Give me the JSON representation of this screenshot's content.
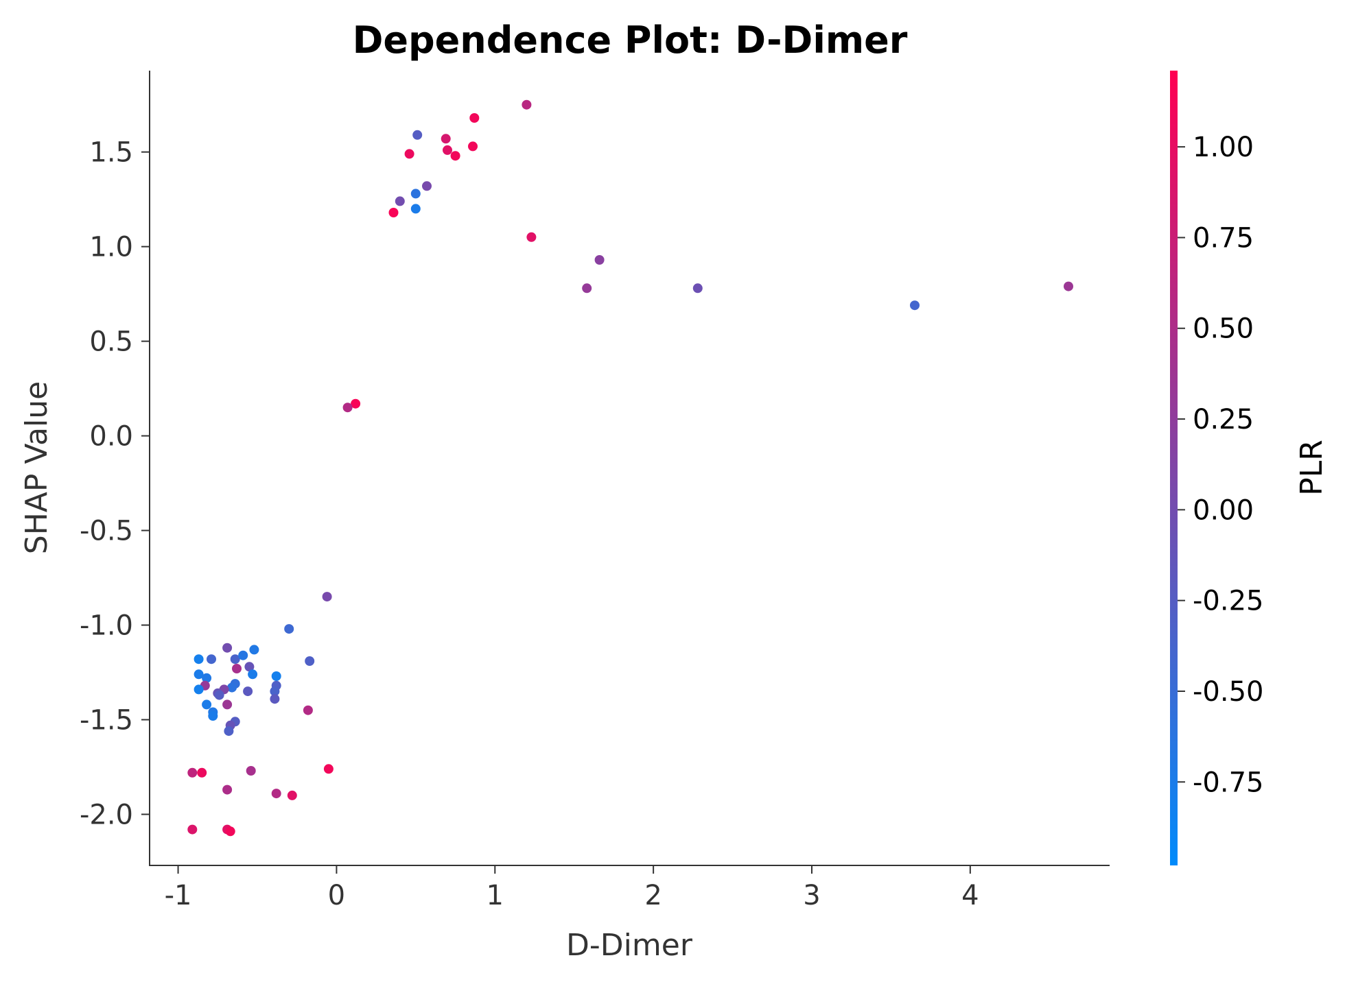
{
  "chart_data": {
    "type": "scatter",
    "title": "Dependence Plot: D-Dimer",
    "xlabel": "D-Dimer",
    "ylabel": "SHAP Value",
    "xlim": [
      -1.18,
      4.88
    ],
    "ylim": [
      -2.27,
      1.93
    ],
    "x_ticks": [
      -1,
      0,
      1,
      2,
      3,
      4
    ],
    "x_tick_labels": [
      "-1",
      "0",
      "1",
      "2",
      "3",
      "4"
    ],
    "y_ticks": [
      -2.0,
      -1.5,
      -1.0,
      -0.5,
      0.0,
      0.5,
      1.0,
      1.5
    ],
    "y_tick_labels": [
      "-2.0",
      "-1.5",
      "-1.0",
      "-0.5",
      "0.0",
      "0.5",
      "1.0",
      "1.5"
    ],
    "grid": false,
    "colorbar": {
      "label": "PLR",
      "range": [
        -0.98,
        1.21
      ],
      "ticks": [
        -0.75,
        -0.5,
        -0.25,
        0.0,
        0.25,
        0.5,
        0.75,
        1.0
      ],
      "tick_labels": [
        "-0.75",
        "-0.50",
        "-0.25",
        "0.00",
        "0.25",
        "0.50",
        "0.75",
        "1.00"
      ],
      "colormap": [
        "#008bfb",
        "#ff0052"
      ]
    },
    "points": [
      {
        "x": 1.2,
        "y": 1.75,
        "c": 0.6
      },
      {
        "x": 0.87,
        "y": 1.68,
        "c": 1.1
      },
      {
        "x": 0.51,
        "y": 1.59,
        "c": -0.25
      },
      {
        "x": 0.69,
        "y": 1.57,
        "c": 0.85
      },
      {
        "x": 0.86,
        "y": 1.53,
        "c": 1.1
      },
      {
        "x": 0.7,
        "y": 1.51,
        "c": 0.95
      },
      {
        "x": 0.46,
        "y": 1.49,
        "c": 1.05
      },
      {
        "x": 0.75,
        "y": 1.48,
        "c": 1.1
      },
      {
        "x": 0.57,
        "y": 1.32,
        "c": 0.05
      },
      {
        "x": 0.5,
        "y": 1.28,
        "c": -0.6
      },
      {
        "x": 0.4,
        "y": 1.24,
        "c": 0.0
      },
      {
        "x": 0.5,
        "y": 1.2,
        "c": -0.75
      },
      {
        "x": 0.36,
        "y": 1.18,
        "c": 1.15
      },
      {
        "x": 1.23,
        "y": 1.05,
        "c": 0.95
      },
      {
        "x": 1.66,
        "y": 0.93,
        "c": 0.2
      },
      {
        "x": 1.58,
        "y": 0.78,
        "c": 0.3
      },
      {
        "x": 2.28,
        "y": 0.78,
        "c": -0.05
      },
      {
        "x": 4.62,
        "y": 0.79,
        "c": 0.35
      },
      {
        "x": 3.65,
        "y": 0.69,
        "c": -0.4
      },
      {
        "x": 0.12,
        "y": 0.17,
        "c": 1.15
      },
      {
        "x": 0.07,
        "y": 0.15,
        "c": 0.55
      },
      {
        "x": -0.06,
        "y": -0.85,
        "c": 0.05
      },
      {
        "x": -0.3,
        "y": -1.02,
        "c": -0.45
      },
      {
        "x": -0.52,
        "y": -1.13,
        "c": -0.7
      },
      {
        "x": -0.69,
        "y": -1.12,
        "c": 0.0
      },
      {
        "x": -0.17,
        "y": -1.19,
        "c": -0.3
      },
      {
        "x": -0.87,
        "y": -1.18,
        "c": -0.8
      },
      {
        "x": -0.79,
        "y": -1.18,
        "c": -0.4
      },
      {
        "x": -0.64,
        "y": -1.18,
        "c": -0.35
      },
      {
        "x": -0.59,
        "y": -1.16,
        "c": -0.65
      },
      {
        "x": -0.55,
        "y": -1.22,
        "c": -0.1
      },
      {
        "x": -0.63,
        "y": -1.23,
        "c": 0.45
      },
      {
        "x": -0.38,
        "y": -1.27,
        "c": -0.8
      },
      {
        "x": -0.53,
        "y": -1.26,
        "c": -0.75
      },
      {
        "x": -0.87,
        "y": -1.26,
        "c": -0.75
      },
      {
        "x": -0.82,
        "y": -1.28,
        "c": -0.7
      },
      {
        "x": -0.64,
        "y": -1.31,
        "c": -0.55
      },
      {
        "x": -0.66,
        "y": -1.33,
        "c": -0.6
      },
      {
        "x": -0.38,
        "y": -1.32,
        "c": -0.3
      },
      {
        "x": -0.83,
        "y": -1.32,
        "c": 0.3
      },
      {
        "x": -0.87,
        "y": -1.34,
        "c": -0.8
      },
      {
        "x": -0.71,
        "y": -1.34,
        "c": 0.1
      },
      {
        "x": -0.56,
        "y": -1.35,
        "c": -0.2
      },
      {
        "x": -0.39,
        "y": -1.35,
        "c": -0.35
      },
      {
        "x": -0.75,
        "y": -1.36,
        "c": -0.1
      },
      {
        "x": -0.74,
        "y": -1.37,
        "c": -0.25
      },
      {
        "x": -0.39,
        "y": -1.39,
        "c": -0.2
      },
      {
        "x": -0.82,
        "y": -1.42,
        "c": -0.75
      },
      {
        "x": -0.69,
        "y": -1.42,
        "c": 0.35
      },
      {
        "x": -0.78,
        "y": -1.46,
        "c": -0.7
      },
      {
        "x": -0.78,
        "y": -1.48,
        "c": -0.75
      },
      {
        "x": -0.18,
        "y": -1.45,
        "c": 0.55
      },
      {
        "x": -0.64,
        "y": -1.51,
        "c": -0.25
      },
      {
        "x": -0.67,
        "y": -1.53,
        "c": -0.1
      },
      {
        "x": -0.68,
        "y": -1.56,
        "c": -0.3
      },
      {
        "x": -0.05,
        "y": -1.76,
        "c": 1.1
      },
      {
        "x": -0.54,
        "y": -1.77,
        "c": 0.45
      },
      {
        "x": -0.91,
        "y": -1.78,
        "c": 0.65
      },
      {
        "x": -0.85,
        "y": -1.78,
        "c": 1.05
      },
      {
        "x": -0.69,
        "y": -1.87,
        "c": 0.5
      },
      {
        "x": -0.38,
        "y": -1.89,
        "c": 0.55
      },
      {
        "x": -0.28,
        "y": -1.9,
        "c": 0.95
      },
      {
        "x": -0.91,
        "y": -2.08,
        "c": 0.9
      },
      {
        "x": -0.69,
        "y": -2.08,
        "c": 0.95
      },
      {
        "x": -0.67,
        "y": -2.09,
        "c": 1.1
      }
    ]
  }
}
